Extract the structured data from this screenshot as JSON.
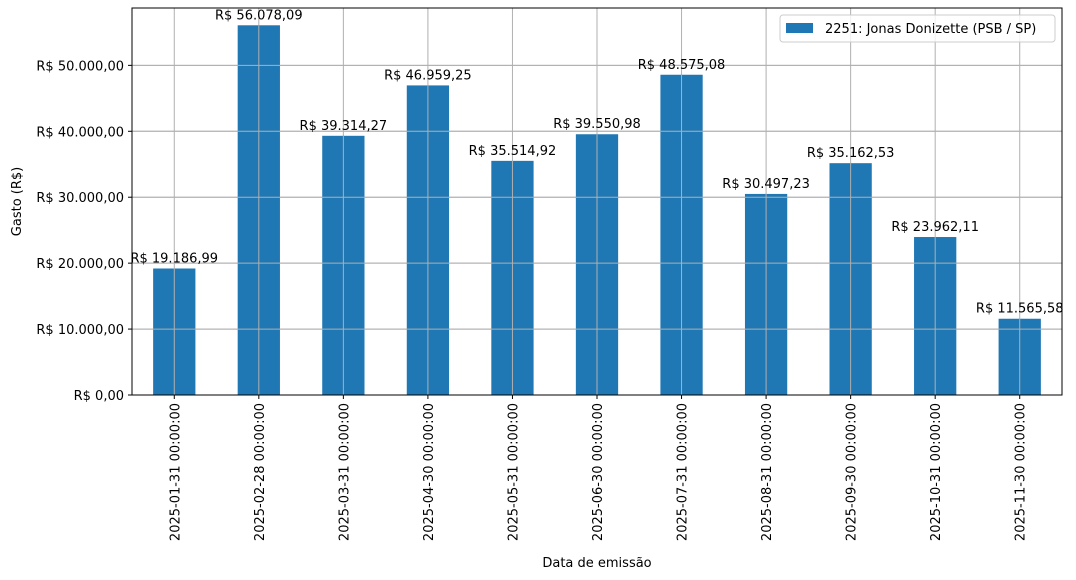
{
  "chart_data": {
    "type": "bar",
    "title": "",
    "xlabel": "Data de emissão",
    "ylabel": "Gasto (R$)",
    "ylim": [
      0,
      58700
    ],
    "grid": true,
    "legend_position": "upper right",
    "categories": [
      "2025-01-31 00:00:00",
      "2025-02-28 00:00:00",
      "2025-03-31 00:00:00",
      "2025-04-30 00:00:00",
      "2025-05-31 00:00:00",
      "2025-06-30 00:00:00",
      "2025-07-31 00:00:00",
      "2025-08-31 00:00:00",
      "2025-09-30 00:00:00",
      "2025-10-31 00:00:00",
      "2025-11-30 00:00:00"
    ],
    "series": [
      {
        "name": "2251: Jonas Donizette (PSB / SP)",
        "color": "#1f77b4",
        "values": [
          19186.99,
          56078.09,
          39314.27,
          46959.25,
          35514.92,
          39550.98,
          48575.08,
          30497.23,
          35162.53,
          23962.11,
          11565.58
        ],
        "labels": [
          "R$ 19.186,99",
          "R$ 56.078,09",
          "R$ 39.314,27",
          "R$ 46.959,25",
          "R$ 35.514,92",
          "R$ 39.550,98",
          "R$ 48.575,08",
          "R$ 30.497,23",
          "R$ 35.162,53",
          "R$ 23.962,11",
          "R$ 11.565,58"
        ]
      }
    ],
    "yticks": [
      0,
      10000,
      20000,
      30000,
      40000,
      50000
    ],
    "ytick_labels": [
      "R$ 0,00",
      "R$ 10.000,00",
      "R$ 20.000,00",
      "R$ 30.000,00",
      "R$ 40.000,00",
      "R$ 50.000,00"
    ]
  },
  "colors": {
    "bar": "#1f77b4",
    "grid": "#b0b0b0",
    "axis": "#000000",
    "legend_border": "#cccccc"
  }
}
